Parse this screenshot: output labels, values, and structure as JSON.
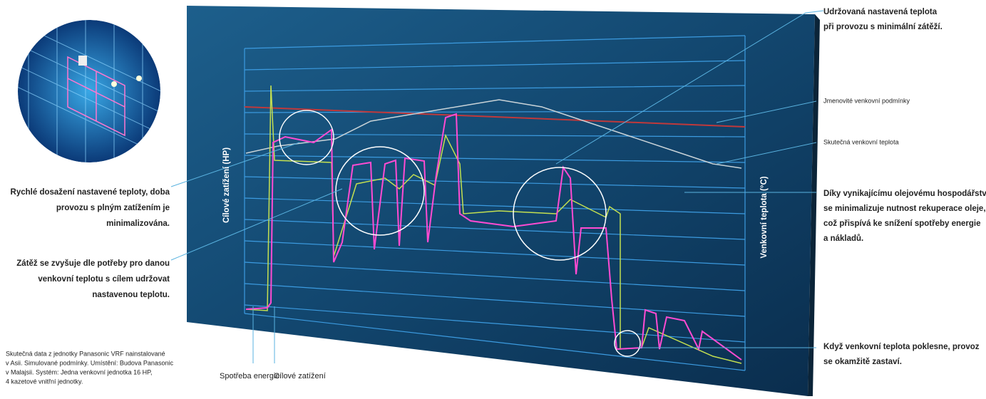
{
  "annotations_right": [
    {
      "lines": [
        "Udržovaná nastavená teplota",
        "při provozu s minimální zátěží."
      ]
    },
    {
      "lines": [
        "Jmenovité venkovní podmínky"
      ]
    },
    {
      "lines": [
        "Skutečná venkovní teplota"
      ]
    },
    {
      "lines": [
        "Díky vynikajícímu olejovému hospodářství",
        "se minimalizuje nutnost rekuperace oleje,",
        "což přispívá ke snížení spotřeby energie",
        "a nákladů."
      ]
    },
    {
      "lines": [
        "Když venkovní teplota poklesne, provoz",
        "se okamžitě zastaví."
      ]
    }
  ],
  "annotations_left": [
    {
      "lines": [
        "Rychlé dosažení nastavené teploty, doba",
        "provozu s plným zatížením je",
        "minimalizována."
      ]
    },
    {
      "lines": [
        "Zátěž se zvyšuje dle potřeby pro danou",
        "venkovní teplotu s cílem udržovat",
        "nastavenou teplotu."
      ]
    }
  ],
  "axes": {
    "left": "Cílové zatížení (HP)",
    "right": "Venkovní teplota (°C)"
  },
  "legend": [
    "Spotřeba energie",
    "Cílové zatížení"
  ],
  "footnote": [
    "Skutečná data z jednotky Panasonic VRF nainstalované",
    "v Asii. Simulované podmínky. Umístění: Budova Panasonic",
    "v Malajsii. Systém: Jedna venkovní jednotka 16 HP,",
    "4 kazetové vnitřní jednotky."
  ]
}
